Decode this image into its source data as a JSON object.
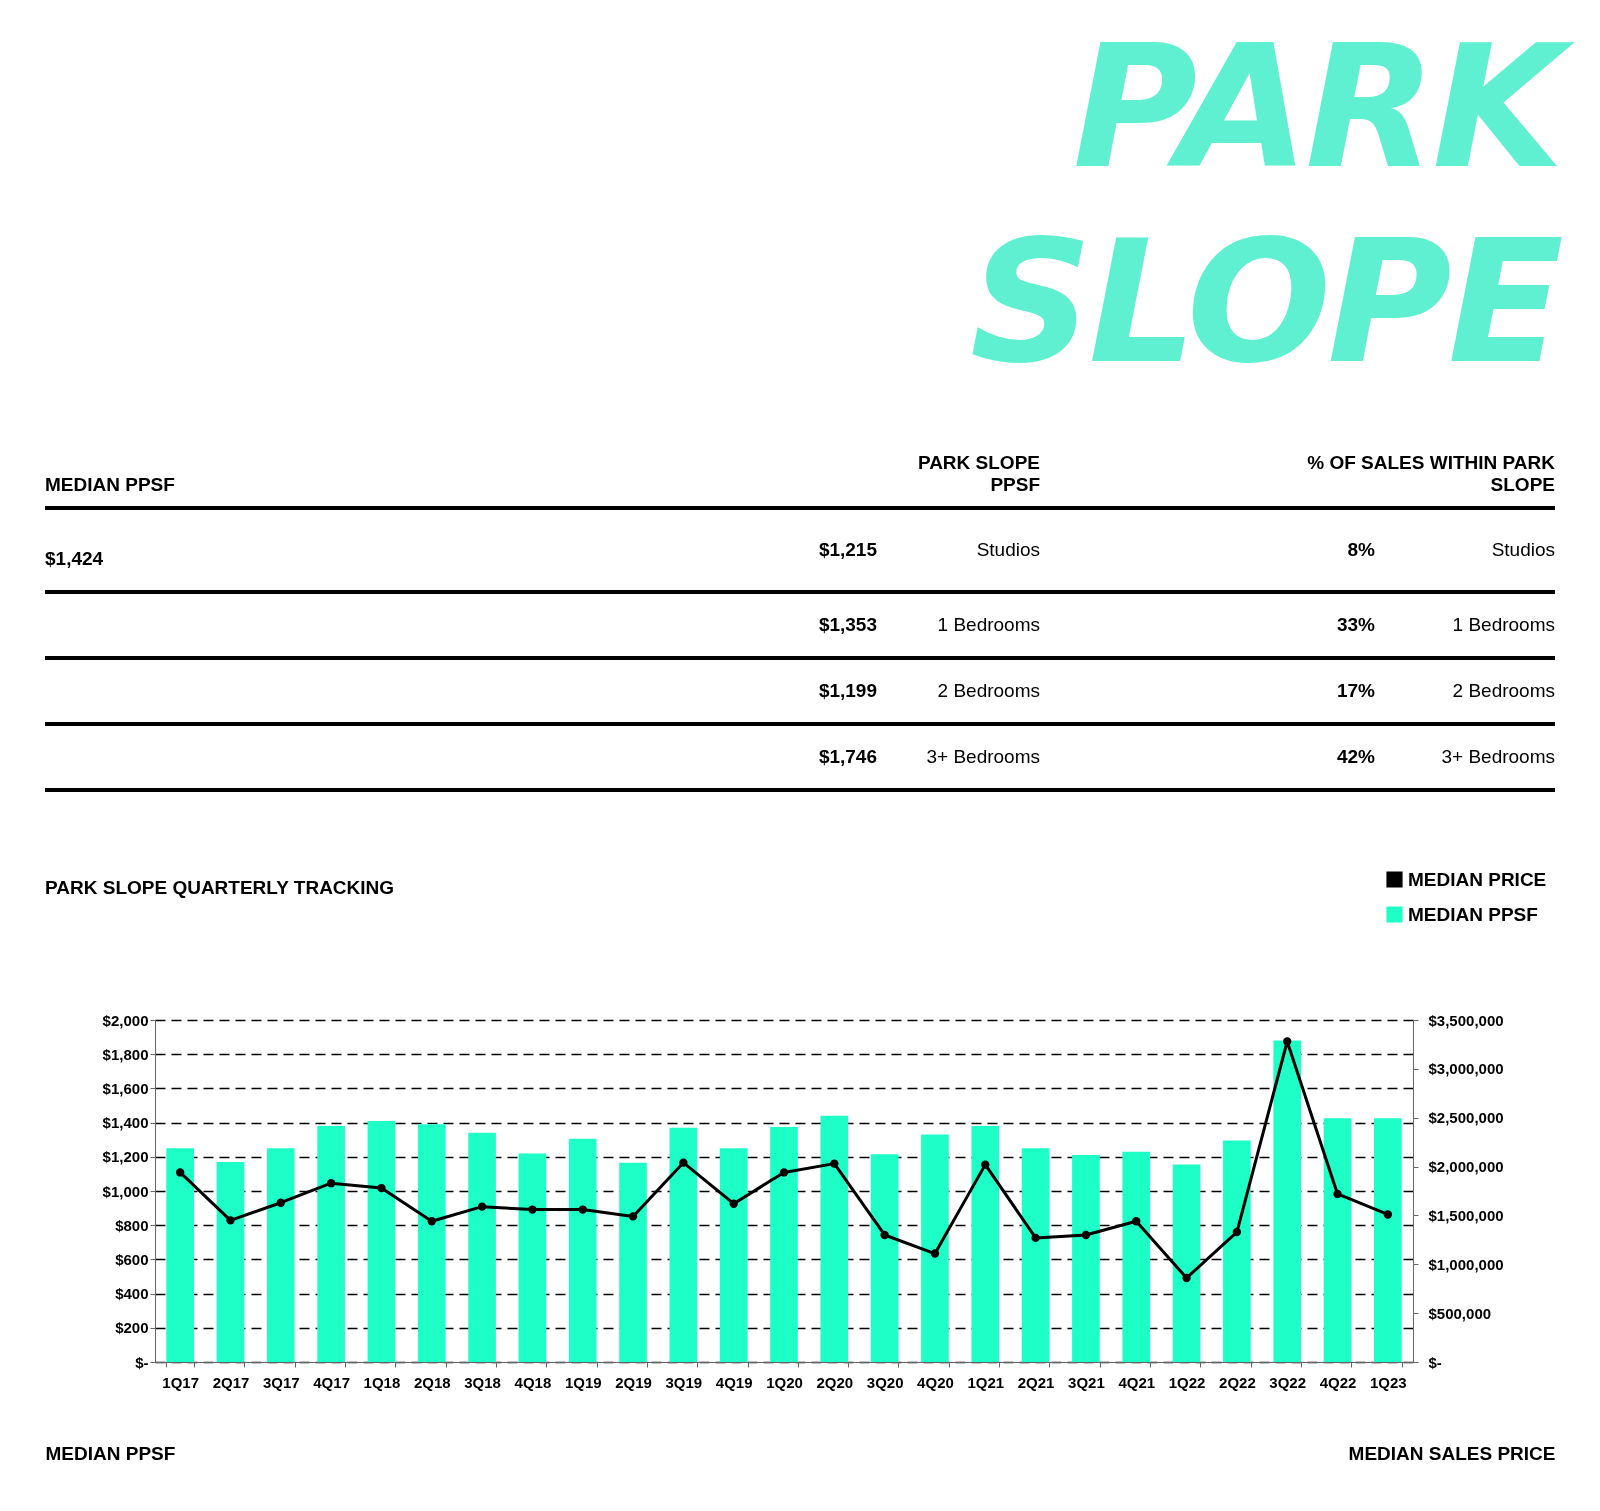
{
  "chart_data": [
    {
      "type": "other",
      "title": "PARK SLOPE",
      "annotations": [
        "MEDIAN PPSF",
        "PARK SLOPE PPSF",
        "% OF SALES WITHIN PARK SLOPE",
        "$1,424",
        "$1,215",
        "Studios",
        "8%",
        "Studios",
        "$1,353",
        "1 Bedrooms",
        "33%",
        "1 Bedrooms",
        "$1,199",
        "2 Bedrooms",
        "17%",
        "2 Bedrooms",
        "$1,746",
        "3+ Bedrooms",
        "42%",
        "3+ Bedrooms"
      ]
    },
    {
      "type": "bar",
      "title": "PARK SLOPE QUARTERLY TRACKING",
      "ylabel": "MEDIAN PPSF",
      "y2label": "MEDIAN SALES PRICE",
      "categories": [
        "1Q17",
        "2Q17",
        "3Q17",
        "4Q17",
        "1Q18",
        "2Q18",
        "3Q18",
        "4Q18",
        "1Q19",
        "2Q19",
        "3Q19",
        "4Q19",
        "1Q20",
        "2Q20",
        "3Q20",
        "4Q20",
        "1Q21",
        "2Q21",
        "3Q21",
        "4Q21",
        "1Q22",
        "2Q22",
        "3Q22",
        "4Q22",
        "1Q23"
      ],
      "series": [
        {
          "name": "MEDIAN PRICE",
          "type": "line",
          "axis": "y2",
          "color": "#000000",
          "values": [
            1940000,
            1450000,
            1630000,
            1830000,
            1780000,
            1440000,
            1590000,
            1560000,
            1560000,
            1490000,
            2040000,
            1620000,
            1940000,
            2030000,
            1300000,
            1110000,
            2020000,
            1270000,
            1300000,
            1440000,
            860000,
            1330000,
            3280000,
            1720000,
            1510000
          ]
        },
        {
          "name": "MEDIAN PPSF",
          "type": "bar",
          "color": "#1effc8",
          "values": [
            1250,
            1170,
            1250,
            1380,
            1410,
            1390,
            1340,
            1220,
            1305,
            1165,
            1370,
            1250,
            1375,
            1440,
            1215,
            1330,
            1380,
            1250,
            1210,
            1230,
            1155,
            1295,
            1880,
            1425,
            1425
          ]
        }
      ],
      "ylim": [
        0,
        2000
      ],
      "yticks": [
        {
          "value": 0,
          "label": "$-"
        },
        {
          "value": 200,
          "label": "$200"
        },
        {
          "value": 400,
          "label": "$400"
        },
        {
          "value": 600,
          "label": "$600"
        },
        {
          "value": 800,
          "label": "$800"
        },
        {
          "value": 1000,
          "label": "$1,000"
        },
        {
          "value": 1200,
          "label": "$1,200"
        },
        {
          "value": 1400,
          "label": "$1,400"
        },
        {
          "value": 1600,
          "label": "$1,600"
        },
        {
          "value": 1800,
          "label": "$1,800"
        },
        {
          "value": 2000,
          "label": "$2,000"
        }
      ],
      "y2lim": [
        0,
        3500000
      ],
      "y2ticks": [
        {
          "value": 0,
          "label": "$-"
        },
        {
          "value": 500000,
          "label": "$500,000"
        },
        {
          "value": 1000000,
          "label": "$1,000,000"
        },
        {
          "value": 1500000,
          "label": "$1,500,000"
        },
        {
          "value": 2000000,
          "label": "$2,000,000"
        },
        {
          "value": 2500000,
          "label": "$2,500,000"
        },
        {
          "value": 3000000,
          "label": "$3,000,000"
        },
        {
          "value": 3500000,
          "label": "$3,500,000"
        }
      ],
      "grid": "y",
      "legend": "top right",
      "marker": "circle",
      "line_style": "solid"
    }
  ]
}
